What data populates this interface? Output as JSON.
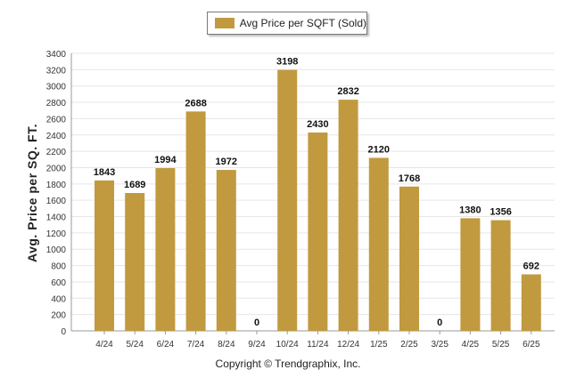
{
  "chart_data": {
    "type": "bar",
    "categories": [
      "4/24",
      "5/24",
      "6/24",
      "7/24",
      "8/24",
      "9/24",
      "10/24",
      "11/24",
      "12/24",
      "1/25",
      "2/25",
      "3/25",
      "4/25",
      "5/25",
      "6/25"
    ],
    "series": [
      {
        "name": "Avg Price per SQFT (Sold)",
        "values": [
          1843,
          1689,
          1994,
          2688,
          1972,
          0,
          3198,
          2430,
          2832,
          2120,
          1768,
          0,
          1380,
          1356,
          692
        ]
      }
    ],
    "ylabel": "Avg. Price per SQ. FT.",
    "xlabel": "",
    "ylim": [
      0,
      3400
    ],
    "yticks": [
      0,
      200,
      400,
      600,
      800,
      1000,
      1200,
      1400,
      1600,
      1800,
      2000,
      2200,
      2400,
      2600,
      2800,
      3000,
      3200,
      3400
    ],
    "grid": true,
    "legend": "top-center",
    "bar_color": "#c19a3f"
  },
  "footer": {
    "copyright": "Copyright © Trendgraphix, Inc."
  }
}
